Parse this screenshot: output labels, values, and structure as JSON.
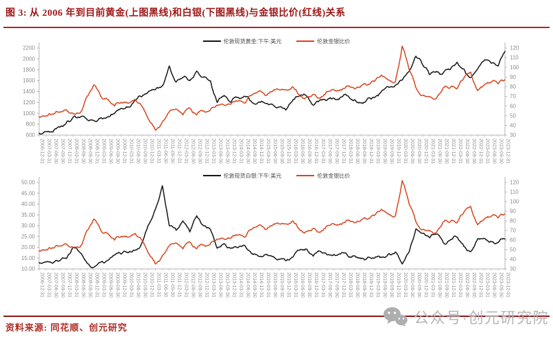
{
  "title": {
    "text": "图 3: 从 2006 年到目前黄金(上图黑线)和白银(下图黑线)与金银比价(红线)关系"
  },
  "footer": {
    "source_label": "资料来源:",
    "source_text": "同花顺、创元研究"
  },
  "watermark": {
    "icon": "wechat-icon",
    "text": "公众号·创元研究院"
  },
  "colors": {
    "black_line": "#141414",
    "ratio_red": "#d8431a",
    "title_red": "#9e1616",
    "underline_red": "#b92025",
    "footer_line_red": "#8e1414",
    "source_red": "#ae2b24",
    "axis_gray": "#8c8c8c",
    "axis_line_gray": "#b3b3b3",
    "watermark_gray": "#b5b5b5"
  },
  "chart_data": {
    "type": "line",
    "grid": false,
    "legend_position": "top-center",
    "categories": [
      "2006-12-31",
      "2007-03-31",
      "2007-06-30",
      "2007-09-30",
      "2007-12-31",
      "2008-03-31",
      "2008-06-30",
      "2008-09-30",
      "2008-12-31",
      "2009-03-31",
      "2009-06-30",
      "2009-09-30",
      "2009-12-31",
      "2010-03-31",
      "2010-06-30",
      "2010-09-30",
      "2010-12-31",
      "2011-03-31",
      "2011-06-30",
      "2011-09-30",
      "2011-12-31",
      "2012-03-31",
      "2012-06-30",
      "2012-09-30",
      "2012-12-31",
      "2013-03-31",
      "2013-06-30",
      "2013-09-30",
      "2013-12-31",
      "2014-03-31",
      "2014-06-30",
      "2014-09-30",
      "2014-12-31",
      "2015-03-31",
      "2015-06-30",
      "2015-09-30",
      "2015-12-31",
      "2016-03-31",
      "2016-06-30",
      "2016-09-30",
      "2016-12-31",
      "2017-03-31",
      "2017-06-30",
      "2017-09-30",
      "2017-12-31",
      "2018-03-31",
      "2018-06-30",
      "2018-09-30",
      "2018-12-31",
      "2019-03-31",
      "2019-06-30",
      "2019-09-30",
      "2019-12-31",
      "2020-03-31",
      "2020-06-30",
      "2020-09-30",
      "2020-12-31",
      "2021-03-31",
      "2021-06-30",
      "2021-09-30",
      "2021-12-31",
      "2022-03-31",
      "2022-06-30",
      "2022-09-30",
      "2022-12-31",
      "2023-03-31",
      "2023-06-30",
      "2023-09-30",
      "2023-12-31"
    ],
    "charts": [
      {
        "name": "gold-vs-ratio",
        "left_axis": {
          "min": 600,
          "max": 2200,
          "step": 200,
          "decimals": 0
        },
        "right_axis": {
          "min": 30,
          "max": 120,
          "step": 10,
          "decimals": 0
        },
        "series": [
          {
            "name": "伦敦现货黄金:下午:美元",
            "axis": "left",
            "color": "#141414",
            "values": [
              635,
              665,
              655,
              745,
              835,
              935,
              930,
              885,
              870,
              920,
              935,
              995,
              1090,
              1115,
              1240,
              1305,
              1405,
              1440,
              1505,
              1870,
              1575,
              1665,
              1600,
              1775,
              1665,
              1600,
              1200,
              1330,
              1205,
              1290,
              1315,
              1215,
              1200,
              1185,
              1170,
              1115,
              1060,
              1235,
              1320,
              1325,
              1150,
              1245,
              1240,
              1280,
              1295,
              1325,
              1250,
              1190,
              1280,
              1295,
              1410,
              1485,
              1515,
              1610,
              1770,
              2050,
              1890,
              1710,
              1770,
              1745,
              1805,
              1940,
              1815,
              1660,
              1815,
              1980,
              1920,
              1870,
              2140
            ]
          },
          {
            "name": "伦敦金银比价",
            "axis": "right",
            "color": "#d8431a",
            "values": [
              49,
              50,
              52,
              54,
              56,
              52,
              53,
              70,
              82,
              70,
              67,
              60,
              64,
              63,
              67,
              60,
              46,
              35,
              44,
              54,
              57,
              51,
              58,
              51,
              55,
              56,
              61,
              61,
              62,
              65,
              63,
              71,
              75,
              71,
              75,
              77,
              77,
              80,
              71,
              69,
              72,
              68,
              75,
              77,
              77,
              81,
              78,
              81,
              82,
              86,
              92,
              87,
              85,
              122,
              98,
              79,
              71,
              70,
              68,
              79,
              79,
              78,
              89,
              95,
              76,
              82,
              85,
              83,
              87
            ]
          }
        ]
      },
      {
        "name": "silver-vs-ratio",
        "left_axis": {
          "min": 10,
          "max": 50,
          "step": 5,
          "decimals": 2
        },
        "right_axis": {
          "min": 30,
          "max": 120,
          "step": 10,
          "decimals": 0
        },
        "series": [
          {
            "name": "伦敦现货白银:下午:美元",
            "axis": "left",
            "color": "#141414",
            "values": [
              12.9,
              13.3,
              12.6,
              13.8,
              14.8,
              20.0,
              17.5,
              12.7,
              10.8,
              13.1,
              13.9,
              16.5,
              16.9,
              17.5,
              18.6,
              22.0,
              30.6,
              37.9,
              48.5,
              30.0,
              27.9,
              32.2,
              27.1,
              34.6,
              30.0,
              28.3,
              19.6,
              21.7,
              19.5,
              19.8,
              20.9,
              17.1,
              15.9,
              16.6,
              15.7,
              14.5,
              13.8,
              15.4,
              18.6,
              19.2,
              15.9,
              18.2,
              16.6,
              16.7,
              16.9,
              16.3,
              16.1,
              14.7,
              15.5,
              15.1,
              15.3,
              17.0,
              17.8,
              12.3,
              17.8,
              28.5,
              26.4,
              24.4,
              26.1,
              22.2,
              23.3,
              24.8,
              20.4,
              18.0,
              23.9,
              24.1,
              22.7,
              22.2,
              23.8
            ]
          },
          {
            "name": "伦敦金银比价",
            "axis": "right",
            "color": "#d8431a",
            "values": [
              49,
              50,
              52,
              54,
              56,
              52,
              53,
              70,
              82,
              70,
              67,
              60,
              64,
              63,
              67,
              60,
              46,
              35,
              44,
              54,
              57,
              51,
              58,
              51,
              55,
              56,
              61,
              61,
              62,
              65,
              63,
              71,
              75,
              71,
              75,
              77,
              77,
              80,
              71,
              69,
              72,
              68,
              75,
              77,
              77,
              81,
              78,
              81,
              82,
              86,
              92,
              87,
              85,
              122,
              98,
              79,
              71,
              70,
              68,
              79,
              79,
              78,
              89,
              95,
              76,
              82,
              85,
              83,
              87
            ]
          }
        ]
      }
    ]
  }
}
